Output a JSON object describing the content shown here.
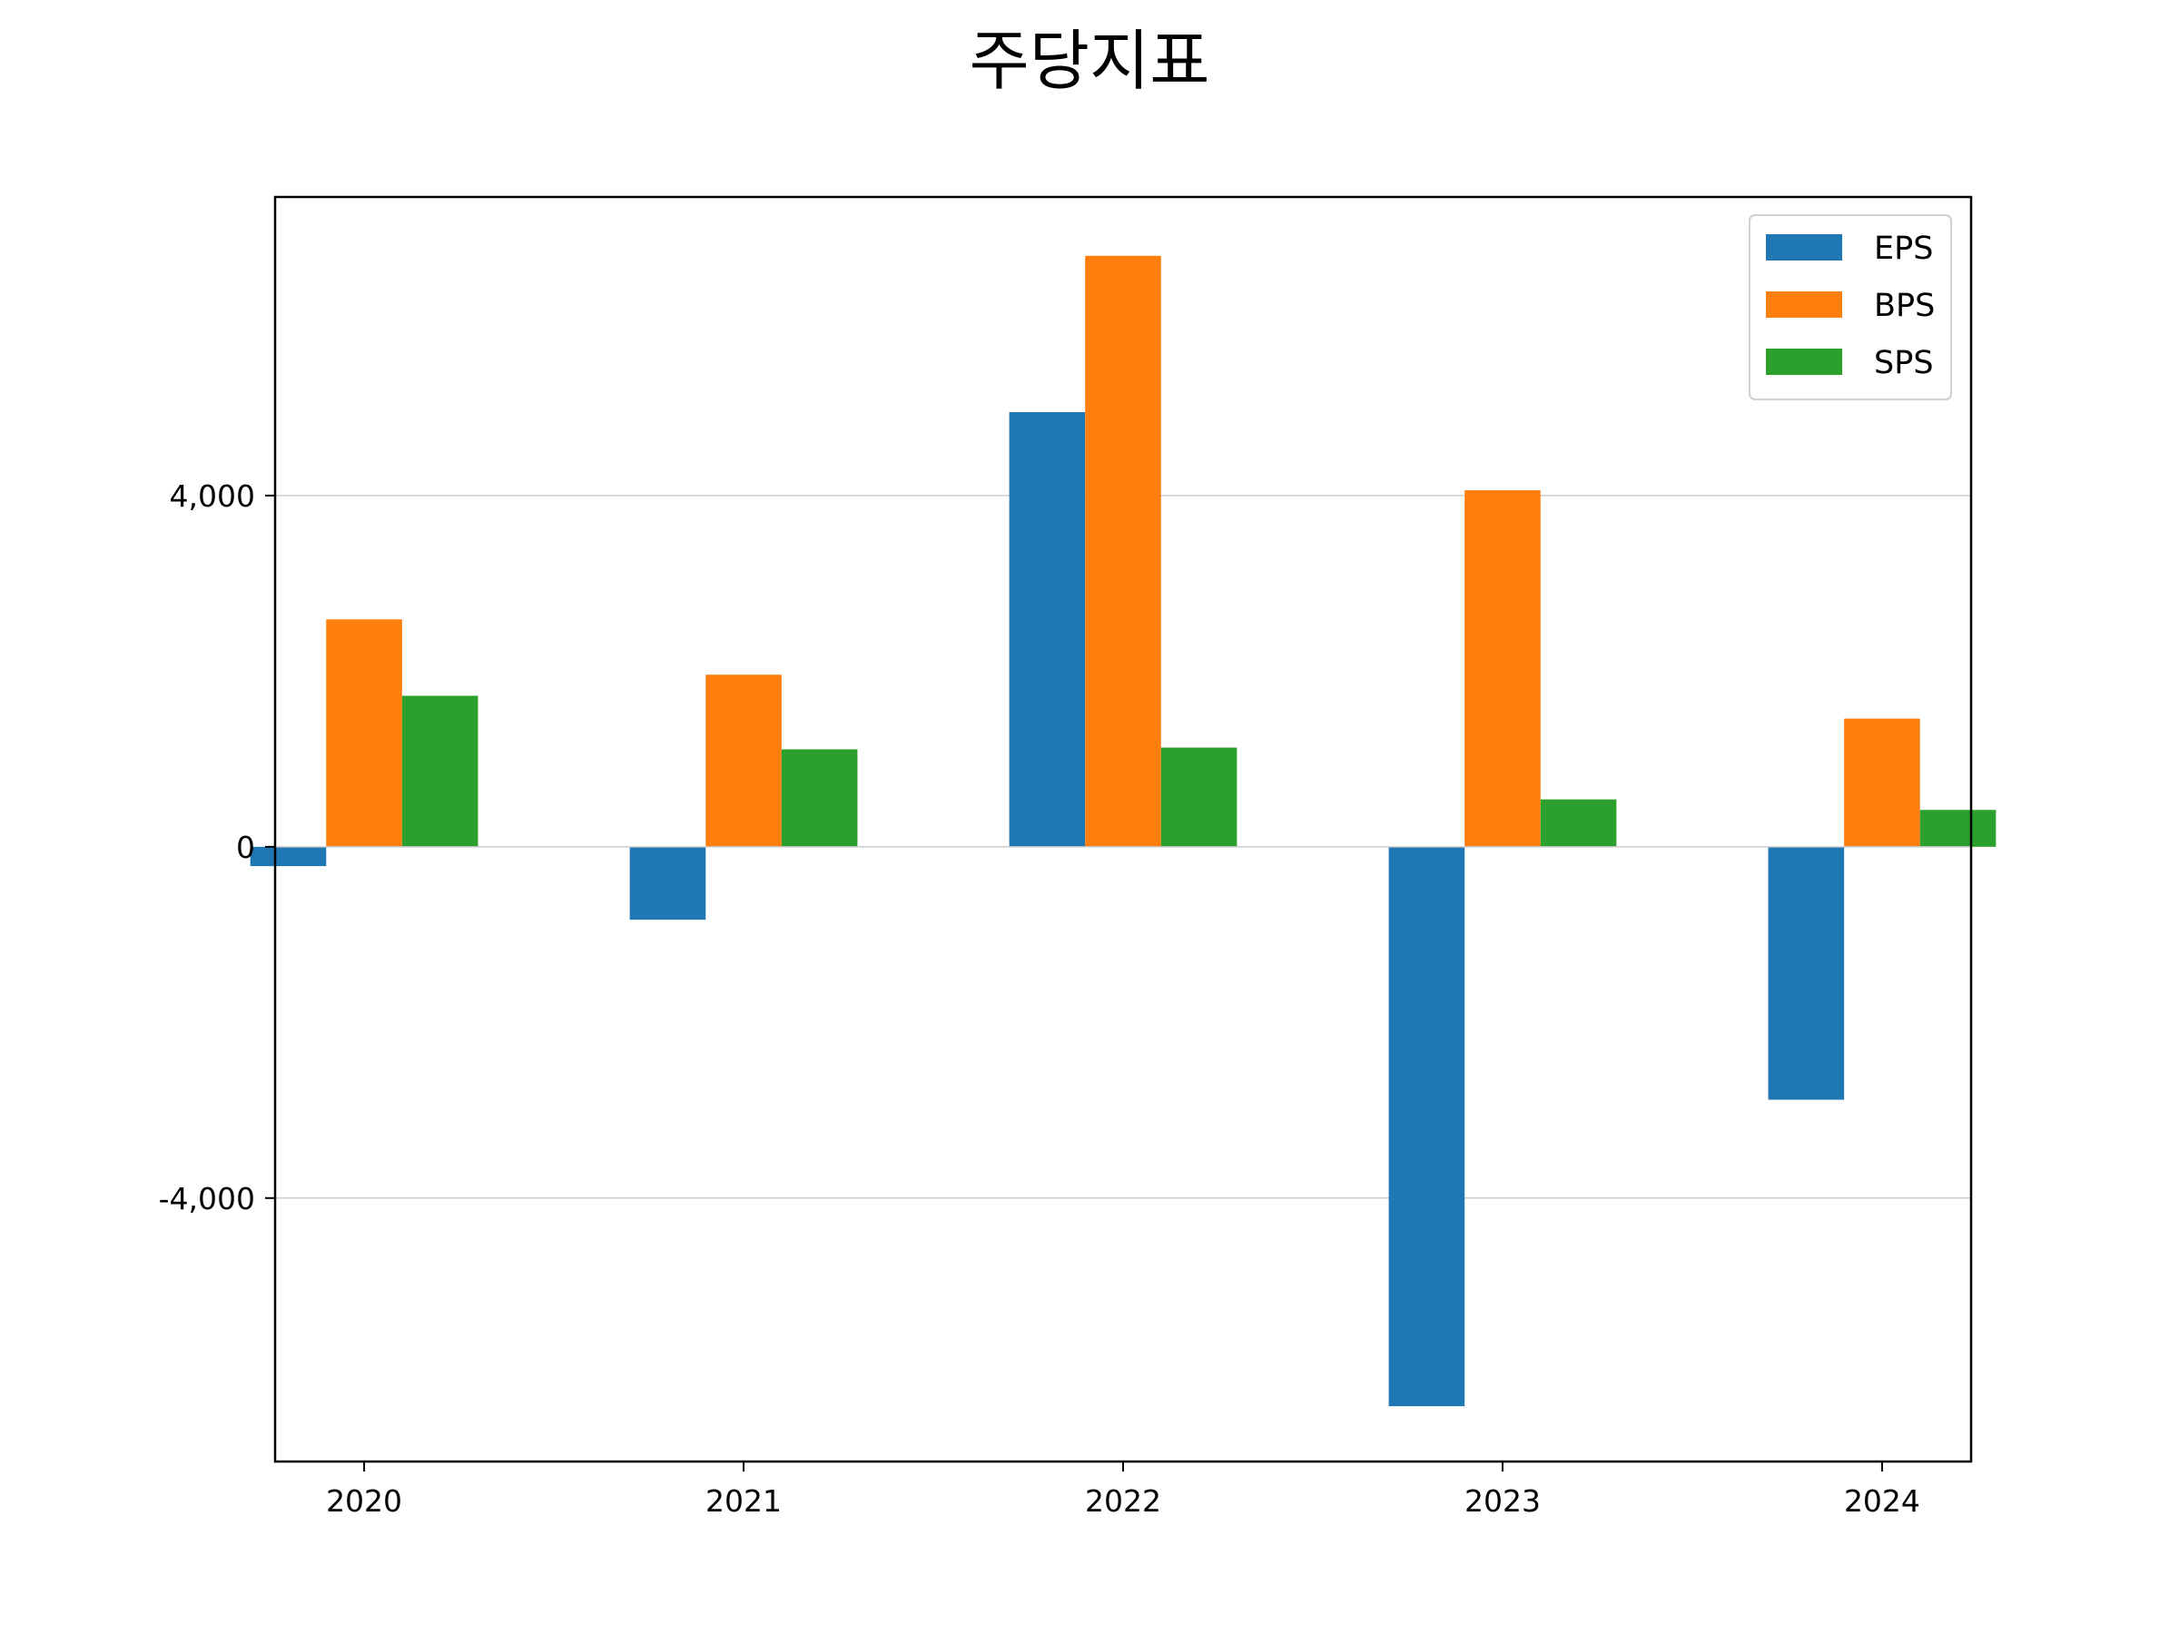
{
  "chart_data": {
    "type": "bar",
    "title": "주당지표",
    "xlabel": "",
    "ylabel": "",
    "categories": [
      "2020",
      "2021",
      "2022",
      "2023",
      "2024"
    ],
    "series": [
      {
        "name": "EPS",
        "color": "#1f77b4",
        "values": [
          -220,
          -830,
          4950,
          -6370,
          -2880
        ]
      },
      {
        "name": "BPS",
        "color": "#ff7f0e",
        "values": [
          2590,
          1960,
          6730,
          4060,
          1460
        ]
      },
      {
        "name": "SPS",
        "color": "#2ca02c",
        "values": [
          1720,
          1110,
          1130,
          540,
          420
        ]
      }
    ],
    "yticks": [
      -4000,
      0,
      4000
    ],
    "ytick_labels": [
      "-4,000",
      "0",
      "4,000"
    ],
    "ylim": [
      -7000,
      7400
    ],
    "grid": "horizontal",
    "legend": "top-right"
  }
}
